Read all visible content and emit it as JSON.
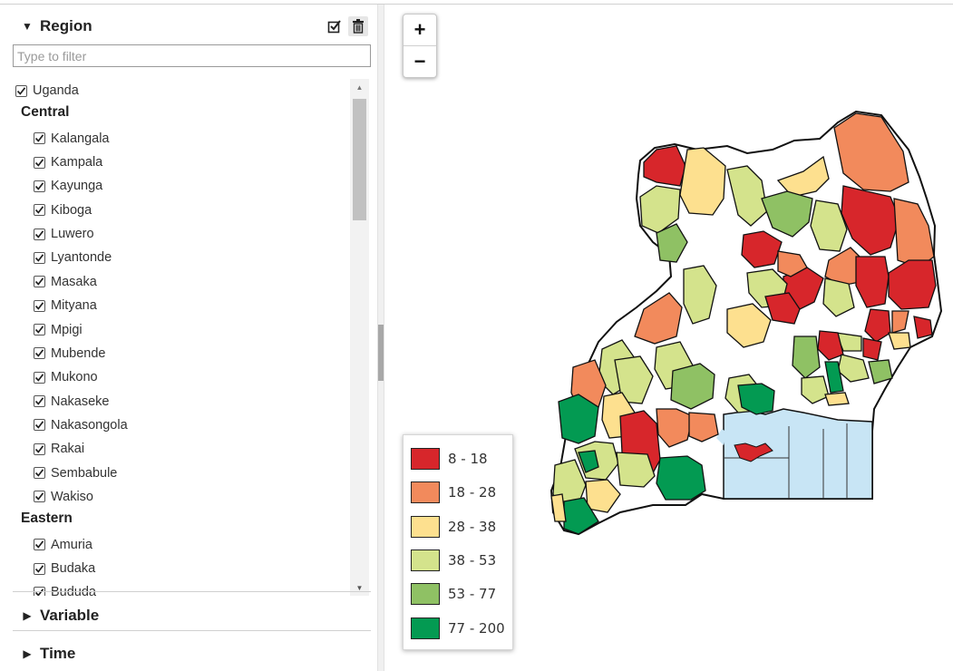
{
  "region": {
    "title": "Region",
    "filter_placeholder": "Type to filter",
    "top": "Uganda",
    "groups": [
      {
        "name": "Central",
        "items": [
          "Kalangala",
          "Kampala",
          "Kayunga",
          "Kiboga",
          "Luwero",
          "Lyantonde",
          "Masaka",
          "Mityana",
          "Mpigi",
          "Mubende",
          "Mukono",
          "Nakaseke",
          "Nakasongola",
          "Rakai",
          "Sembabule",
          "Wakiso"
        ]
      },
      {
        "name": "Eastern",
        "items": [
          "Amuria",
          "Budaka",
          "Bududa"
        ]
      }
    ],
    "all_checked": true
  },
  "variable": {
    "title": "Variable"
  },
  "time": {
    "title": "Time"
  },
  "map": {
    "zoom_in": "+",
    "zoom_out": "−",
    "legend": [
      {
        "label": "8 - 18",
        "color": "#d7262b"
      },
      {
        "label": "18 - 28",
        "color": "#f28a5c"
      },
      {
        "label": "28 - 38",
        "color": "#fde08f"
      },
      {
        "label": "38 - 53",
        "color": "#d4e38c"
      },
      {
        "label": "53 - 77",
        "color": "#8fc164"
      },
      {
        "label": "77 - 200",
        "color": "#039a52"
      }
    ],
    "lake_color": "#c8e5f5"
  }
}
